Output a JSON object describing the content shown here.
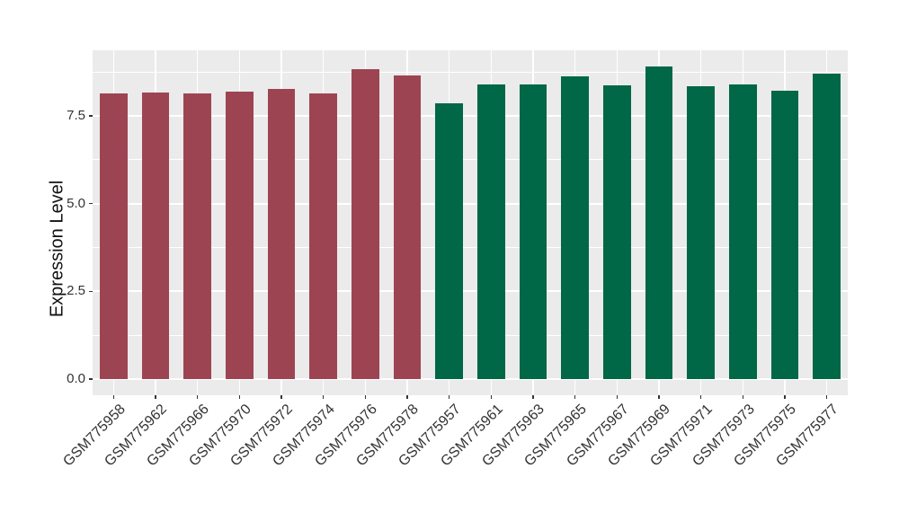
{
  "chart_data": {
    "type": "bar",
    "title": "",
    "ylabel": "Expression Level",
    "xlabel": "",
    "categories": [
      "GSM775958",
      "GSM775962",
      "GSM775966",
      "GSM775970",
      "GSM775972",
      "GSM775974",
      "GSM775976",
      "GSM775978",
      "GSM775957",
      "GSM775961",
      "GSM775963",
      "GSM775965",
      "GSM775967",
      "GSM775969",
      "GSM775971",
      "GSM775973",
      "GSM775975",
      "GSM775977"
    ],
    "values": [
      8.14,
      8.16,
      8.13,
      8.19,
      8.27,
      8.15,
      8.84,
      8.66,
      7.86,
      8.39,
      8.39,
      8.64,
      8.37,
      8.91,
      8.35,
      8.41,
      8.22,
      8.7
    ],
    "bar_colors": [
      "#9D4452",
      "#9D4452",
      "#9D4452",
      "#9D4452",
      "#9D4452",
      "#9D4452",
      "#9D4452",
      "#9D4452",
      "#006747",
      "#006747",
      "#006747",
      "#006747",
      "#006747",
      "#006747",
      "#006747",
      "#006747",
      "#006747",
      "#006747"
    ],
    "color_groups": [
      {
        "color": "#9D4452",
        "count": 8
      },
      {
        "color": "#006747",
        "count": 10
      }
    ],
    "yticks": [
      0,
      2.5,
      5,
      7.5
    ],
    "ytick_labels": [
      "0.0",
      "2.5",
      "5.0",
      "7.5"
    ],
    "ylim": [
      -0.46,
      9.37
    ],
    "grid": {
      "panel_bg": "#EBEBEB",
      "line_color": "#FFFFFF",
      "major_h": [
        0,
        2.5,
        5,
        7.5
      ],
      "minor_h": [
        1.25,
        3.75,
        6.25,
        8.75
      ],
      "vertical_major": "at each category center"
    },
    "legend_position": "none",
    "x_label_rotation_deg": 45
  },
  "style": {
    "figure_bg": "#FFFFFF",
    "axis_text_color": "#333333",
    "axis_title_color": "#111111",
    "tick_mark_color": "#333333"
  }
}
